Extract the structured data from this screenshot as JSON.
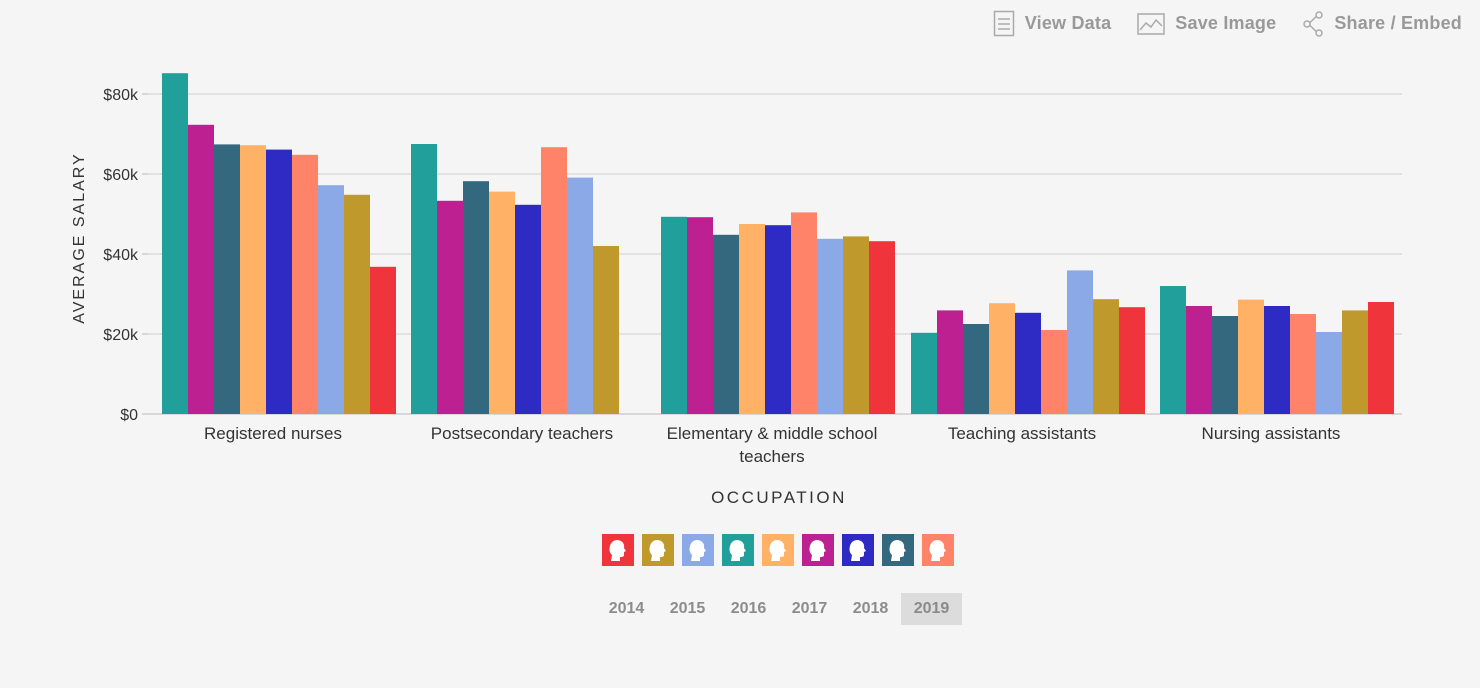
{
  "toolbar": {
    "view_data": "View Data",
    "save_image": "Save Image",
    "share_embed": "Share / Embed"
  },
  "axis": {
    "ylabel": "AVERAGE SALARY",
    "xlabel": "OCCUPATION"
  },
  "legend": {
    "colors": [
      "#f0343c",
      "#c0992c",
      "#8aa9e6",
      "#219f9a",
      "#ffb266",
      "#bd2090",
      "#2e2ac4",
      "#33687f",
      "#ff8368"
    ]
  },
  "years": [
    "2014",
    "2015",
    "2016",
    "2017",
    "2018",
    "2019"
  ],
  "active_year": "2019",
  "chart_data": {
    "type": "bar",
    "categories": [
      "Registered nurses",
      "Postsecondary teachers",
      "Elementary & middle school teachers",
      "Teaching assistants",
      "Nursing assistants"
    ],
    "category_lines": [
      [
        "Registered nurses"
      ],
      [
        "Postsecondary teachers"
      ],
      [
        "Elementary & middle school",
        "teachers"
      ],
      [
        "Teaching assistants"
      ],
      [
        "Nursing assistants"
      ]
    ],
    "series": [
      {
        "color": "#219f9a",
        "values": [
          85200,
          67500,
          49300,
          20300,
          32000
        ]
      },
      {
        "color": "#bd2090",
        "values": [
          72300,
          53300,
          49200,
          25900,
          27000
        ]
      },
      {
        "color": "#33687f",
        "values": [
          67400,
          58200,
          44800,
          22500,
          24500
        ]
      },
      {
        "color": "#ffb266",
        "values": [
          67200,
          55600,
          47500,
          27700,
          28600
        ]
      },
      {
        "color": "#2e2ac4",
        "values": [
          66100,
          52300,
          47200,
          25300,
          27000
        ]
      },
      {
        "color": "#ff8368",
        "values": [
          64800,
          66700,
          50400,
          21000,
          25000
        ]
      },
      {
        "color": "#8aa9e6",
        "values": [
          57200,
          59100,
          43800,
          35900,
          20500
        ]
      },
      {
        "color": "#c0992c",
        "values": [
          54800,
          42000,
          44400,
          28700,
          25900
        ]
      },
      {
        "color": "#f0343c",
        "values": [
          36800,
          null,
          43200,
          26700,
          28000
        ]
      }
    ],
    "yticks": [
      "$0",
      "$20k",
      "$40k",
      "$60k",
      "$80k"
    ],
    "ytick_values": [
      0,
      20000,
      40000,
      60000,
      80000
    ],
    "ylim": [
      0,
      86000
    ],
    "grid": true
  }
}
